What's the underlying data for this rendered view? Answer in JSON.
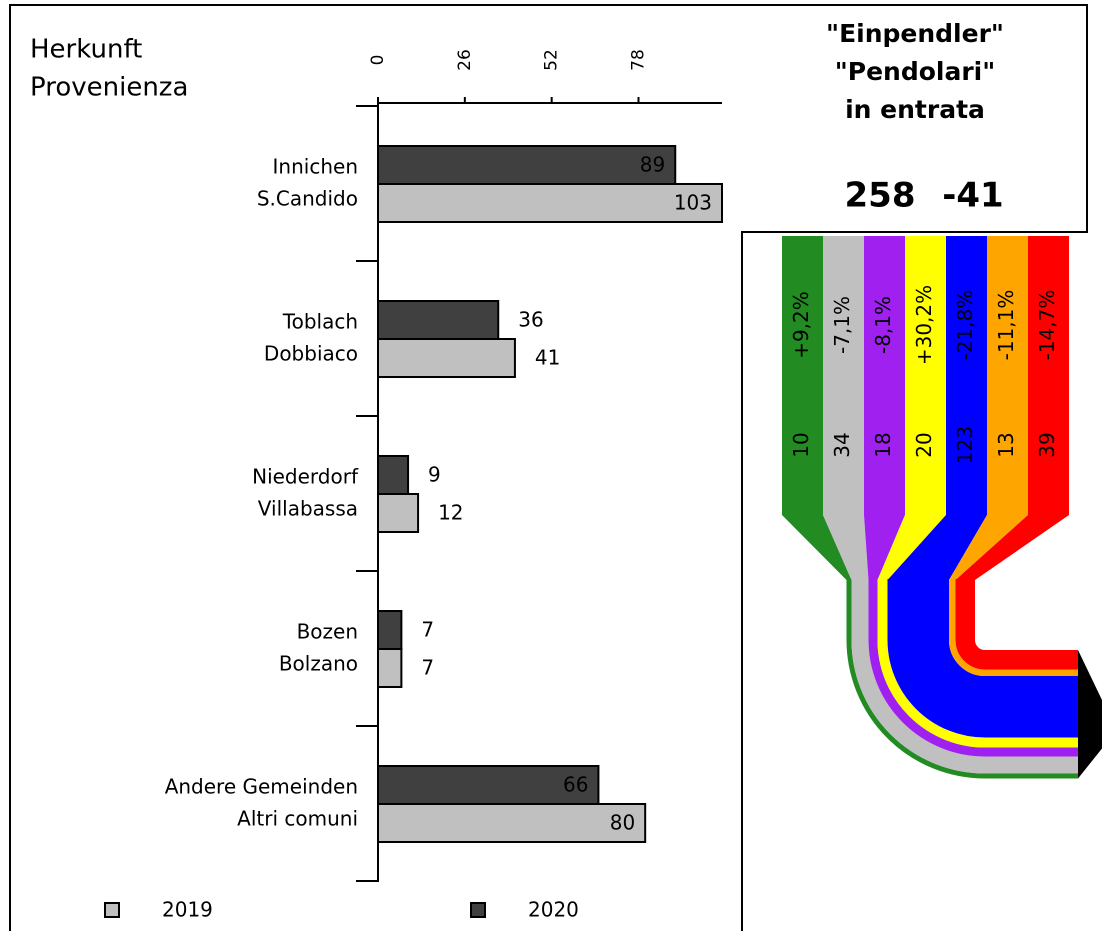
{
  "chart_data": {
    "type": "bar",
    "orientation": "horizontal",
    "axis_title": [
      "Herkunft",
      "Provenienza"
    ],
    "categories": [
      [
        "Innichen",
        "S.Candido"
      ],
      [
        "Toblach",
        "Dobbiaco"
      ],
      [
        "Niederdorf",
        "Villabassa"
      ],
      [
        "Bozen",
        "Bolzano"
      ],
      [
        "Andere Gemeinden",
        "Altri comuni"
      ]
    ],
    "series": [
      {
        "name": "2020",
        "color": "#404040",
        "values": [
          89,
          36,
          9,
          7,
          66
        ]
      },
      {
        "name": "2019",
        "color": "#c0c0c0",
        "values": [
          103,
          41,
          12,
          7,
          80
        ]
      }
    ],
    "xlim": [
      0,
      103
    ],
    "xticks": [
      0,
      26,
      52,
      78
    ],
    "flow": {
      "title": [
        "\"Einpendler\"",
        "\"Pendolari\"",
        "in entrata"
      ],
      "total": 258,
      "change": -41,
      "bands": [
        {
          "value": 10,
          "change": "+9,2%",
          "color": "#228b22"
        },
        {
          "value": 34,
          "change": "-7,1%",
          "color": "#c0c0c0"
        },
        {
          "value": 18,
          "change": "-8,1%",
          "color": "#a020f0"
        },
        {
          "value": 20,
          "change": "+30,2%",
          "color": "#ffff00"
        },
        {
          "value": 123,
          "change": "-21,8%",
          "color": "#0000ff"
        },
        {
          "value": 13,
          "change": "-11,1%",
          "color": "#ffa500"
        },
        {
          "value": 39,
          "change": "-14,7%",
          "color": "#ff0000"
        }
      ]
    }
  }
}
